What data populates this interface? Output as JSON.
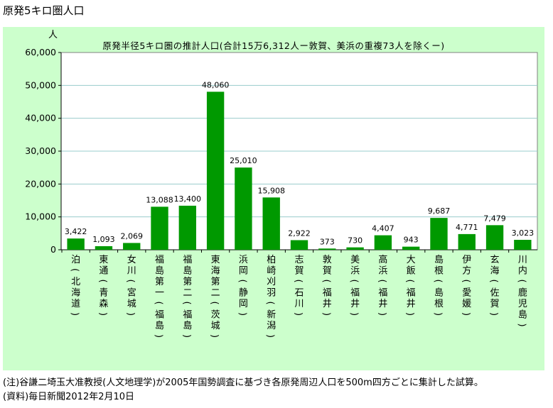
{
  "page_title": "原発5キロ圏人口",
  "notes": {
    "note": "(注)谷謙二埼玉大准教授(人文地理学)が2005年国勢調査に基づき各原発周辺人口を500m四方ごとに集計した試算。",
    "source": "(資料)毎日新聞2012年2月10日"
  },
  "colors": {
    "background": "#ccffcc",
    "plot": "#ffffff",
    "bar": "#009900",
    "grid": "#99cccc"
  },
  "chart_data": {
    "type": "bar",
    "title": "原発半径5キロ圏の推計人口(合計15万6,312人ー敦賀、美浜の重複73人を除くー)",
    "ylabel": "人",
    "xlabel": "",
    "ylim": [
      0,
      60000
    ],
    "yticks": [
      "0",
      "10,000",
      "20,000",
      "30,000",
      "40,000",
      "50,000",
      "60,000"
    ],
    "categories": [
      [
        "泊",
        "(",
        "北",
        "海",
        "道",
        ")"
      ],
      [
        "東",
        "通",
        "(",
        "青",
        "森",
        ")"
      ],
      [
        "女",
        "川",
        "(",
        "宮",
        "城",
        ")"
      ],
      [
        "福",
        "島",
        "第",
        "一",
        "(",
        "福",
        "島",
        ")"
      ],
      [
        "福",
        "島",
        "第",
        "二",
        "(",
        "福",
        "島",
        ")"
      ],
      [
        "東",
        "海",
        "第",
        "二",
        "(",
        "茨",
        "城",
        ")"
      ],
      [
        "浜",
        "岡",
        "(",
        "静",
        "岡",
        ")"
      ],
      [
        "柏",
        "崎",
        "刈",
        "羽",
        "(",
        "新",
        "潟",
        ")"
      ],
      [
        "志",
        "賀",
        "(",
        "石",
        "川",
        ")"
      ],
      [
        "敦",
        "賀",
        "(",
        "福",
        "井",
        ")"
      ],
      [
        "美",
        "浜",
        "(",
        "福",
        "井",
        ")"
      ],
      [
        "高",
        "浜",
        "(",
        "福",
        "井",
        ")"
      ],
      [
        "大",
        "飯",
        "(",
        "福",
        "井",
        ")"
      ],
      [
        "島",
        "根",
        "(",
        "島",
        "根",
        ")"
      ],
      [
        "伊",
        "方",
        "(",
        "愛",
        "媛",
        ")"
      ],
      [
        "玄",
        "海",
        "(",
        "佐",
        "賀",
        ")"
      ],
      [
        "川",
        "内",
        "(",
        "鹿",
        "児",
        "島",
        ")"
      ]
    ],
    "values": [
      3422,
      1093,
      2069,
      13088,
      13400,
      48060,
      25010,
      15908,
      2922,
      373,
      730,
      4407,
      943,
      9687,
      4771,
      7479,
      3023
    ],
    "value_labels": [
      "3,422",
      "1,093",
      "2,069",
      "13,088",
      "13,400",
      "48,060",
      "25,010",
      "15,908",
      "2,922",
      "373",
      "730",
      "4,407",
      "943",
      "9,687",
      "4,771",
      "7,479",
      "3,023"
    ],
    "grid": true,
    "legend": "none"
  }
}
